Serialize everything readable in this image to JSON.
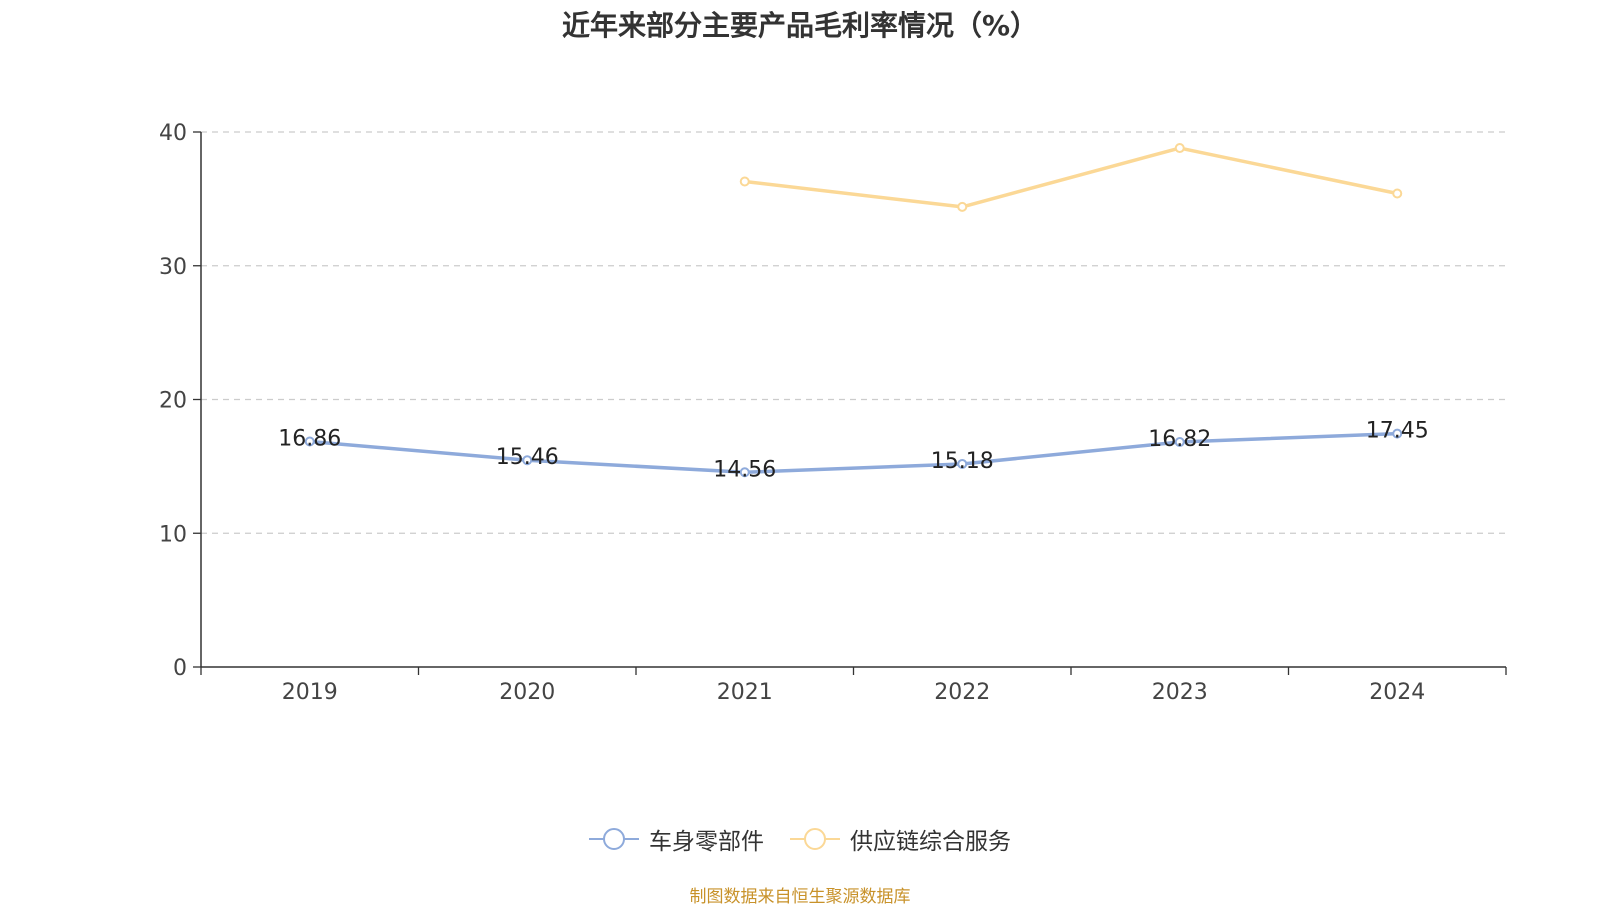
{
  "chart_data": {
    "type": "line",
    "title": "近年来部分主要产品毛利率情况（%）",
    "categories": [
      "2019",
      "2020",
      "2021",
      "2022",
      "2023",
      "2024"
    ],
    "ylim": [
      0,
      40
    ],
    "yticks": [
      "0",
      "10",
      "20",
      "30",
      "40"
    ],
    "grid": true,
    "legend_position": "bottom",
    "series": [
      {
        "name": "车身零部件",
        "color": "#8eaadb",
        "values": [
          16.86,
          15.46,
          14.56,
          15.18,
          16.82,
          17.45
        ],
        "labels": [
          "16.86",
          "15.46",
          "14.56",
          "15.18",
          "16.82",
          "17.45"
        ]
      },
      {
        "name": "供应链综合服务",
        "color": "#fbd896",
        "values": [
          null,
          null,
          36.3,
          34.4,
          38.8,
          35.4
        ],
        "labels": []
      }
    ]
  },
  "source": "制图数据来自恒生聚源数据库"
}
